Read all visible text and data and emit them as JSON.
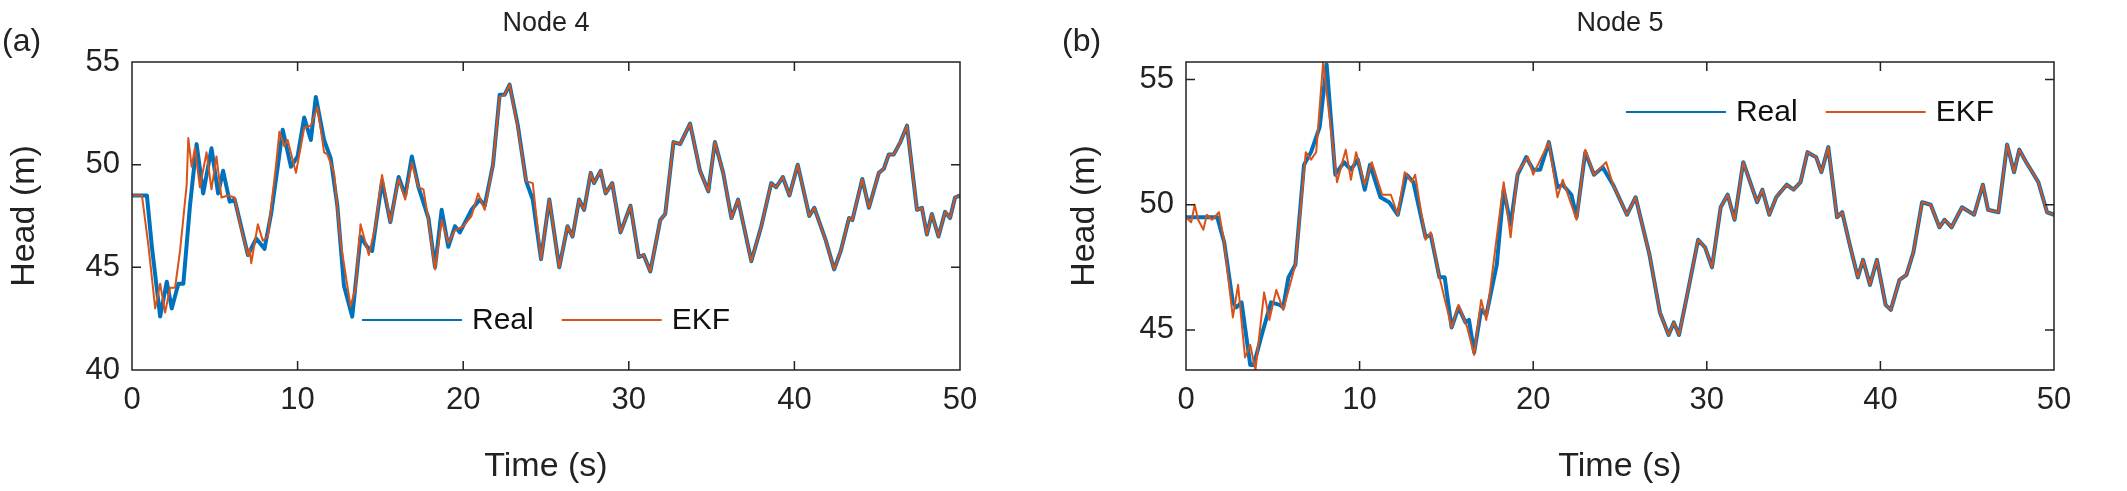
{
  "chart_data": [
    {
      "type": "line",
      "title": "Node 4",
      "xlabel": "Time (s)",
      "ylabel": "Head (m)",
      "annotations": [
        "(a)"
      ],
      "xlim": [
        0,
        50
      ],
      "xticks": [
        0,
        10,
        20,
        30,
        40,
        50
      ],
      "ylim": [
        40,
        55
      ],
      "yticks": [
        40,
        45,
        50,
        55
      ],
      "grid": false,
      "marker": "none",
      "legend": "bottom",
      "series": [
        {
          "name": "Real",
          "color": "#0072bd",
          "x": [
            0,
            0.9,
            1.2,
            1.7,
            2.1,
            2.4,
            2.8,
            3.1,
            3.5,
            3.9,
            4.3,
            4.8,
            5.2,
            5.5,
            5.9,
            6.2,
            7.0,
            7.5,
            8.0,
            8.4,
            8.8,
            9.1,
            9.6,
            10.0,
            10.4,
            10.8,
            11.1,
            11.6,
            12.0,
            12.4,
            12.8,
            13.3,
            13.8,
            14.2,
            14.5,
            15.1,
            15.6,
            16.1,
            16.5,
            16.9,
            17.3,
            17.9,
            18.3,
            18.7,
            19.1,
            19.5,
            19.8,
            20.5,
            21.0,
            21.3,
            21.8,
            22.2,
            22.5,
            22.8,
            23.3,
            23.8,
            24.2,
            24.7,
            25.2,
            25.8,
            26.3,
            26.6,
            27.0,
            27.3,
            27.7,
            27.9,
            28.3,
            28.6,
            29.0,
            29.5,
            30.1,
            30.6,
            30.9,
            31.3,
            31.9,
            32.2,
            32.7,
            33.1,
            33.7,
            34.3,
            34.8,
            35.2,
            35.7,
            36.2,
            36.6,
            37.4,
            38.0,
            38.6,
            38.9,
            39.3,
            39.7,
            40.2,
            40.9,
            41.2,
            41.9,
            42.4,
            42.8,
            43.3,
            43.5,
            44.1,
            44.5,
            45.1,
            45.4,
            45.7,
            46.0,
            46.4,
            46.8,
            47.4,
            47.7,
            48.0,
            48.3,
            48.7,
            49.1,
            49.4,
            49.7,
            50.0
          ],
          "values": [
            48.5,
            48.5,
            46.0,
            42.6,
            44.3,
            43.0,
            44.2,
            44.2,
            48.0,
            51.0,
            48.6,
            50.8,
            48.6,
            49.7,
            48.2,
            48.3,
            45.6,
            46.4,
            45.9,
            47.6,
            49.9,
            51.7,
            49.9,
            50.4,
            52.3,
            51.2,
            53.3,
            51.2,
            50.3,
            48.0,
            44.1,
            42.6,
            46.5,
            46.0,
            45.8,
            49.2,
            47.2,
            49.4,
            48.5,
            50.4,
            48.9,
            47.4,
            45.0,
            47.8,
            46.0,
            47.0,
            46.7,
            47.8,
            48.3,
            48.0,
            50.0,
            53.4,
            53.4,
            53.9,
            51.9,
            49.2,
            48.3,
            45.4,
            48.3,
            45.0,
            47.0,
            46.5,
            48.3,
            47.8,
            49.6,
            49.1,
            49.7,
            48.6,
            49.1,
            46.7,
            48.0,
            45.5,
            45.6,
            44.8,
            47.3,
            47.6,
            51.1,
            51.0,
            52.0,
            49.7,
            48.7,
            51.1,
            49.6,
            47.4,
            48.3,
            45.3,
            47.0,
            49.1,
            48.9,
            49.4,
            48.5,
            50.0,
            47.5,
            47.9,
            46.3,
            44.9,
            45.8,
            47.4,
            47.3,
            49.3,
            47.9,
            49.6,
            49.8,
            50.5,
            50.5,
            51.1,
            51.9,
            47.8,
            47.9,
            46.6,
            47.6,
            46.5,
            47.7,
            47.4,
            48.4,
            48.5
          ]
        },
        {
          "name": "EKF",
          "color": "#d95319",
          "x": [
            0,
            0.6,
            1.0,
            1.4,
            1.7,
            2.0,
            2.3,
            2.6,
            2.9,
            3.3,
            3.4,
            3.6,
            3.8,
            4.1,
            4.5,
            4.8,
            5.1,
            5.4,
            5.8,
            6.2,
            6.5,
            7.0,
            7.1,
            7.2,
            7.6,
            7.9,
            8.2,
            8.7,
            8.9,
            9.2,
            9.4,
            9.9,
            10.4,
            10.8,
            11.2,
            11.6,
            11.8,
            12.2,
            12.6,
            13.2,
            13.5,
            13.8,
            14.3,
            14.7,
            15.1,
            15.6,
            16.1,
            16.5,
            16.9,
            17.3,
            17.6,
            17.9,
            18.3,
            18.7,
            19.1,
            19.5,
            20.0,
            20.5,
            20.9,
            21.3,
            21.8,
            22.2,
            22.5,
            22.8,
            23.3,
            23.8,
            24.2,
            24.7,
            25.2,
            25.8,
            26.3,
            26.6,
            27.0,
            27.3,
            27.7,
            27.9,
            28.3,
            28.6,
            29.0,
            29.5,
            30.1,
            30.6,
            30.9,
            31.3,
            31.9,
            32.2,
            32.7,
            33.1,
            33.7,
            34.3,
            34.8,
            35.2,
            35.7,
            36.2,
            36.6,
            37.4,
            38.0,
            38.6,
            38.9,
            39.3,
            39.7,
            40.2,
            40.9,
            41.2,
            41.9,
            42.4,
            42.8,
            43.3,
            43.5,
            44.1,
            44.5,
            45.1,
            45.4,
            45.7,
            46.0,
            46.4,
            46.8,
            47.4,
            47.7,
            48.0,
            48.3,
            48.7,
            49.1,
            49.4,
            49.7,
            50.0
          ],
          "values": [
            48.5,
            48.5,
            46.0,
            43.0,
            44.2,
            42.8,
            44.0,
            44.0,
            45.8,
            49.0,
            51.3,
            49.9,
            50.8,
            48.9,
            50.6,
            48.8,
            50.4,
            48.4,
            48.5,
            48.4,
            47.2,
            45.6,
            45.9,
            45.2,
            47.1,
            46.3,
            46.5,
            50.0,
            51.6,
            50.9,
            51.2,
            49.6,
            51.8,
            51.9,
            52.8,
            50.6,
            50.5,
            49.6,
            46.2,
            43.1,
            44.0,
            47.1,
            45.6,
            47.0,
            49.5,
            47.2,
            49.3,
            48.3,
            50.1,
            48.9,
            48.8,
            47.3,
            44.9,
            47.3,
            46.2,
            46.8,
            47.0,
            47.5,
            48.6,
            47.8,
            50.0,
            53.3,
            53.4,
            53.9,
            51.8,
            49.2,
            49.1,
            45.4,
            48.3,
            45.0,
            47.0,
            46.5,
            48.3,
            47.8,
            49.6,
            49.1,
            49.7,
            48.6,
            49.1,
            46.7,
            48.0,
            45.5,
            45.6,
            44.8,
            47.3,
            47.6,
            51.1,
            51.0,
            52.0,
            49.7,
            48.7,
            51.1,
            49.6,
            47.4,
            48.3,
            45.3,
            47.0,
            49.1,
            48.9,
            49.4,
            48.5,
            50.0,
            47.5,
            47.9,
            46.3,
            44.9,
            45.8,
            47.4,
            47.3,
            49.3,
            47.9,
            49.6,
            49.8,
            50.5,
            50.5,
            51.1,
            51.9,
            47.8,
            47.9,
            46.6,
            47.6,
            46.5,
            47.7,
            47.4,
            48.4,
            48.5
          ]
        }
      ]
    },
    {
      "type": "line",
      "title": "Node 5",
      "xlabel": "Time (s)",
      "ylabel": "Head (m)",
      "annotations": [
        "(b)"
      ],
      "xlim": [
        0,
        50
      ],
      "xticks": [
        0,
        10,
        20,
        30,
        40,
        50
      ],
      "ylim": [
        43.4,
        55.7
      ],
      "yticks": [
        45,
        50,
        55
      ],
      "grid": false,
      "marker": "none",
      "legend": "top right",
      "series": [
        {
          "name": "Real",
          "color": "#0072bd",
          "x": [
            0,
            1.8,
            2.2,
            2.7,
            2.9,
            3.2,
            3.7,
            3.9,
            4.4,
            4.9,
            5.4,
            5.6,
            5.9,
            6.3,
            6.8,
            7.2,
            7.7,
            8.1,
            8.6,
            9.1,
            9.5,
            9.9,
            10.3,
            10.6,
            11.2,
            11.7,
            12.2,
            12.7,
            13.1,
            13.8,
            14.1,
            14.6,
            14.9,
            15.3,
            15.7,
            16.1,
            16.3,
            16.6,
            17.0,
            17.3,
            17.9,
            18.3,
            18.7,
            19.1,
            19.6,
            20.0,
            20.4,
            20.9,
            21.4,
            21.7,
            22.2,
            22.5,
            23.0,
            23.5,
            24.0,
            24.6,
            25.4,
            25.9,
            26.7,
            27.3,
            27.8,
            28.1,
            28.4,
            28.9,
            29.5,
            29.9,
            30.3,
            30.8,
            31.2,
            31.6,
            32.1,
            32.9,
            33.2,
            33.6,
            34.0,
            34.6,
            35.0,
            35.4,
            35.8,
            36.3,
            36.6,
            37.0,
            37.5,
            37.8,
            38.2,
            38.7,
            39.0,
            39.4,
            39.8,
            40.3,
            40.6,
            41.1,
            41.5,
            41.9,
            42.4,
            42.9,
            43.4,
            43.7,
            44.1,
            44.7,
            45.4,
            45.9,
            46.2,
            46.8,
            47.3,
            47.7,
            48.0,
            48.4,
            49.1,
            49.6,
            50.0
          ],
          "values": [
            49.5,
            49.5,
            48.5,
            46.1,
            45.9,
            46.1,
            43.6,
            43.6,
            44.9,
            46.1,
            46.0,
            45.9,
            47.1,
            47.6,
            51.6,
            52.1,
            53.1,
            55.6,
            51.2,
            51.7,
            51.4,
            51.8,
            50.6,
            51.6,
            50.3,
            50.1,
            49.6,
            51.2,
            50.9,
            48.7,
            48.8,
            47.1,
            47.1,
            45.1,
            45.9,
            45.3,
            45.4,
            44.1,
            45.8,
            45.6,
            47.6,
            50.6,
            49.2,
            51.2,
            51.9,
            51.4,
            51.4,
            52.5,
            50.7,
            50.8,
            50.4,
            49.5,
            52.1,
            51.2,
            51.5,
            50.8,
            49.6,
            50.3,
            48.0,
            45.7,
            44.8,
            45.3,
            44.8,
            46.5,
            48.6,
            48.3,
            47.5,
            49.9,
            50.4,
            49.4,
            51.7,
            50.1,
            50.6,
            49.6,
            50.3,
            50.8,
            50.6,
            50.9,
            52.1,
            51.9,
            51.3,
            52.3,
            49.5,
            49.7,
            48.5,
            47.1,
            47.8,
            46.8,
            47.8,
            46.0,
            45.8,
            47.0,
            47.2,
            48.1,
            50.1,
            50.0,
            49.1,
            49.4,
            49.1,
            49.9,
            49.6,
            50.8,
            49.8,
            49.7,
            52.4,
            51.3,
            52.2,
            51.7,
            50.9,
            49.7,
            49.6
          ]
        },
        {
          "name": "EKF",
          "color": "#d95319",
          "x": [
            0,
            0.3,
            0.5,
            0.7,
            1.0,
            1.2,
            1.5,
            1.9,
            2.2,
            2.7,
            3.0,
            3.4,
            3.7,
            4.0,
            4.5,
            4.8,
            5.2,
            5.6,
            6.3,
            6.9,
            7.2,
            7.5,
            7.9,
            8.7,
            9.2,
            9.5,
            9.8,
            10.3,
            10.7,
            11.3,
            11.8,
            12.2,
            12.6,
            13.0,
            13.2,
            13.8,
            14.1,
            14.6,
            15.3,
            15.7,
            16.2,
            16.6,
            17.0,
            17.3,
            18.3,
            18.7,
            19.1,
            19.7,
            20.0,
            20.9,
            21.4,
            21.7,
            22.5,
            23.0,
            23.5,
            24.2,
            24.6,
            25.4,
            25.9,
            26.7,
            27.3,
            27.8,
            28.1,
            28.4,
            28.9,
            29.5,
            29.9,
            30.3,
            30.8,
            31.2,
            31.6,
            32.1,
            32.9,
            33.2,
            33.6,
            34.0,
            34.6,
            35.0,
            35.4,
            35.8,
            36.3,
            36.6,
            37.0,
            37.5,
            37.8,
            38.2,
            38.7,
            39.0,
            39.4,
            39.8,
            40.3,
            40.6,
            41.1,
            41.5,
            41.9,
            42.4,
            42.9,
            43.4,
            43.7,
            44.1,
            44.7,
            45.4,
            45.9,
            46.2,
            46.8,
            47.3,
            47.7,
            48.0,
            48.4,
            49.1,
            49.6,
            50.0
          ],
          "values": [
            49.5,
            49.3,
            50.0,
            49.4,
            49.0,
            49.6,
            49.4,
            49.7,
            48.5,
            45.5,
            46.8,
            43.9,
            44.4,
            43.4,
            46.5,
            45.4,
            46.6,
            45.8,
            47.6,
            52.1,
            51.8,
            52.1,
            55.7,
            50.9,
            52.2,
            51.0,
            52.1,
            50.8,
            51.7,
            50.4,
            50.4,
            49.6,
            51.3,
            50.9,
            51.2,
            48.6,
            48.9,
            47.1,
            45.1,
            46.0,
            45.1,
            44.0,
            46.2,
            45.4,
            50.9,
            48.7,
            51.3,
            51.9,
            51.2,
            52.5,
            50.3,
            51.0,
            49.4,
            52.2,
            51.2,
            51.7,
            50.8,
            49.6,
            50.3,
            48.0,
            45.7,
            44.8,
            45.3,
            44.8,
            46.5,
            48.6,
            48.3,
            47.5,
            49.9,
            50.4,
            49.4,
            51.7,
            50.1,
            50.6,
            49.6,
            50.3,
            50.8,
            50.6,
            50.9,
            52.1,
            51.9,
            51.3,
            52.3,
            49.5,
            49.7,
            48.5,
            47.1,
            47.8,
            46.8,
            47.8,
            46.0,
            45.8,
            47.0,
            47.2,
            48.1,
            50.1,
            50.0,
            49.1,
            49.4,
            49.1,
            49.9,
            49.6,
            50.8,
            49.8,
            49.7,
            52.4,
            51.3,
            52.2,
            51.7,
            50.9,
            49.7,
            49.6
          ]
        }
      ]
    }
  ]
}
